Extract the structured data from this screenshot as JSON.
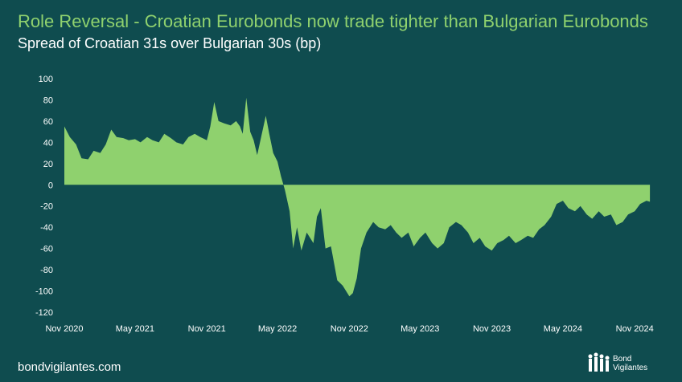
{
  "header": {
    "title": "Role Reversal - Croatian Eurobonds now trade tighter than Bulgarian Eurobonds",
    "subtitle": "Spread of Croatian 31s over Bulgarian 30s (bp)"
  },
  "footer": {
    "website": "bondvigilantes.com",
    "logo_line1": "Bond",
    "logo_line2": "Vigilantes"
  },
  "colors": {
    "background": "#0f4c4f",
    "area_fill": "#8fd16e",
    "title": "#8fd16e",
    "text": "#ffffff"
  },
  "chart_data": {
    "type": "area",
    "title": "Spread of Croatian 31s over Bulgarian 30s (bp)",
    "xlabel": "",
    "ylabel": "",
    "ylim": [
      -120,
      100
    ],
    "yticks": [
      100,
      80,
      60,
      40,
      20,
      0,
      -20,
      -40,
      -60,
      -80,
      -100,
      -120
    ],
    "xticks": [
      "Nov 2020",
      "May 2021",
      "Nov 2021",
      "May 2022",
      "Nov 2022",
      "May 2023",
      "Nov 2023",
      "May 2024",
      "Nov 2024"
    ],
    "grid": false,
    "legend": "none",
    "series": [
      {
        "name": "",
        "x": [
          "2020-11-01",
          "2020-11-15",
          "2020-12-01",
          "2020-12-15",
          "2021-01-01",
          "2021-01-15",
          "2021-02-01",
          "2021-02-15",
          "2021-03-01",
          "2021-03-15",
          "2021-04-01",
          "2021-04-15",
          "2021-05-01",
          "2021-05-15",
          "2021-06-01",
          "2021-06-15",
          "2021-07-01",
          "2021-07-15",
          "2021-08-01",
          "2021-08-15",
          "2021-09-01",
          "2021-09-15",
          "2021-10-01",
          "2021-10-15",
          "2021-11-01",
          "2021-11-10",
          "2021-11-20",
          "2021-12-01",
          "2021-12-15",
          "2022-01-01",
          "2022-01-15",
          "2022-01-25",
          "2022-02-01",
          "2022-02-10",
          "2022-02-20",
          "2022-03-01",
          "2022-03-10",
          "2022-03-20",
          "2022-04-01",
          "2022-04-10",
          "2022-04-20",
          "2022-05-01",
          "2022-05-10",
          "2022-05-20",
          "2022-06-01",
          "2022-06-10",
          "2022-06-20",
          "2022-07-01",
          "2022-07-15",
          "2022-08-01",
          "2022-08-10",
          "2022-08-20",
          "2022-09-01",
          "2022-09-15",
          "2022-10-01",
          "2022-10-15",
          "2022-11-01",
          "2022-11-10",
          "2022-11-20",
          "2022-12-01",
          "2022-12-15",
          "2023-01-01",
          "2023-01-15",
          "2023-02-01",
          "2023-02-15",
          "2023-03-01",
          "2023-03-15",
          "2023-04-01",
          "2023-04-15",
          "2023-05-01",
          "2023-05-15",
          "2023-06-01",
          "2023-06-15",
          "2023-07-01",
          "2023-07-15",
          "2023-08-01",
          "2023-08-15",
          "2023-09-01",
          "2023-09-15",
          "2023-10-01",
          "2023-10-15",
          "2023-11-01",
          "2023-11-15",
          "2023-12-01",
          "2023-12-15",
          "2024-01-01",
          "2024-01-15",
          "2024-02-01",
          "2024-02-15",
          "2024-03-01",
          "2024-03-15",
          "2024-04-01",
          "2024-04-15",
          "2024-05-01",
          "2024-05-15",
          "2024-06-01",
          "2024-06-15",
          "2024-07-01",
          "2024-07-15",
          "2024-08-01",
          "2024-08-15",
          "2024-09-01",
          "2024-09-15",
          "2024-10-01",
          "2024-10-15",
          "2024-11-01",
          "2024-11-15",
          "2024-12-01",
          "2024-12-10"
        ],
        "values": [
          55,
          45,
          38,
          25,
          24,
          32,
          30,
          38,
          52,
          45,
          44,
          42,
          43,
          40,
          45,
          42,
          40,
          48,
          44,
          40,
          38,
          45,
          48,
          45,
          42,
          55,
          78,
          60,
          58,
          56,
          60,
          55,
          48,
          82,
          50,
          42,
          28,
          45,
          65,
          48,
          30,
          22,
          8,
          -5,
          -25,
          -60,
          -40,
          -62,
          -45,
          -55,
          -30,
          -22,
          -60,
          -58,
          -90,
          -95,
          -105,
          -102,
          -88,
          -60,
          -45,
          -35,
          -40,
          -42,
          -38,
          -45,
          -50,
          -45,
          -58,
          -50,
          -45,
          -55,
          -60,
          -55,
          -40,
          -35,
          -38,
          -45,
          -55,
          -50,
          -58,
          -62,
          -55,
          -52,
          -48,
          -55,
          -52,
          -48,
          -50,
          -42,
          -38,
          -30,
          -18,
          -15,
          -22,
          -25,
          -20,
          -28,
          -32,
          -25,
          -30,
          -28,
          -38,
          -35,
          -28,
          -25,
          -18,
          -15,
          -16
        ]
      }
    ]
  }
}
